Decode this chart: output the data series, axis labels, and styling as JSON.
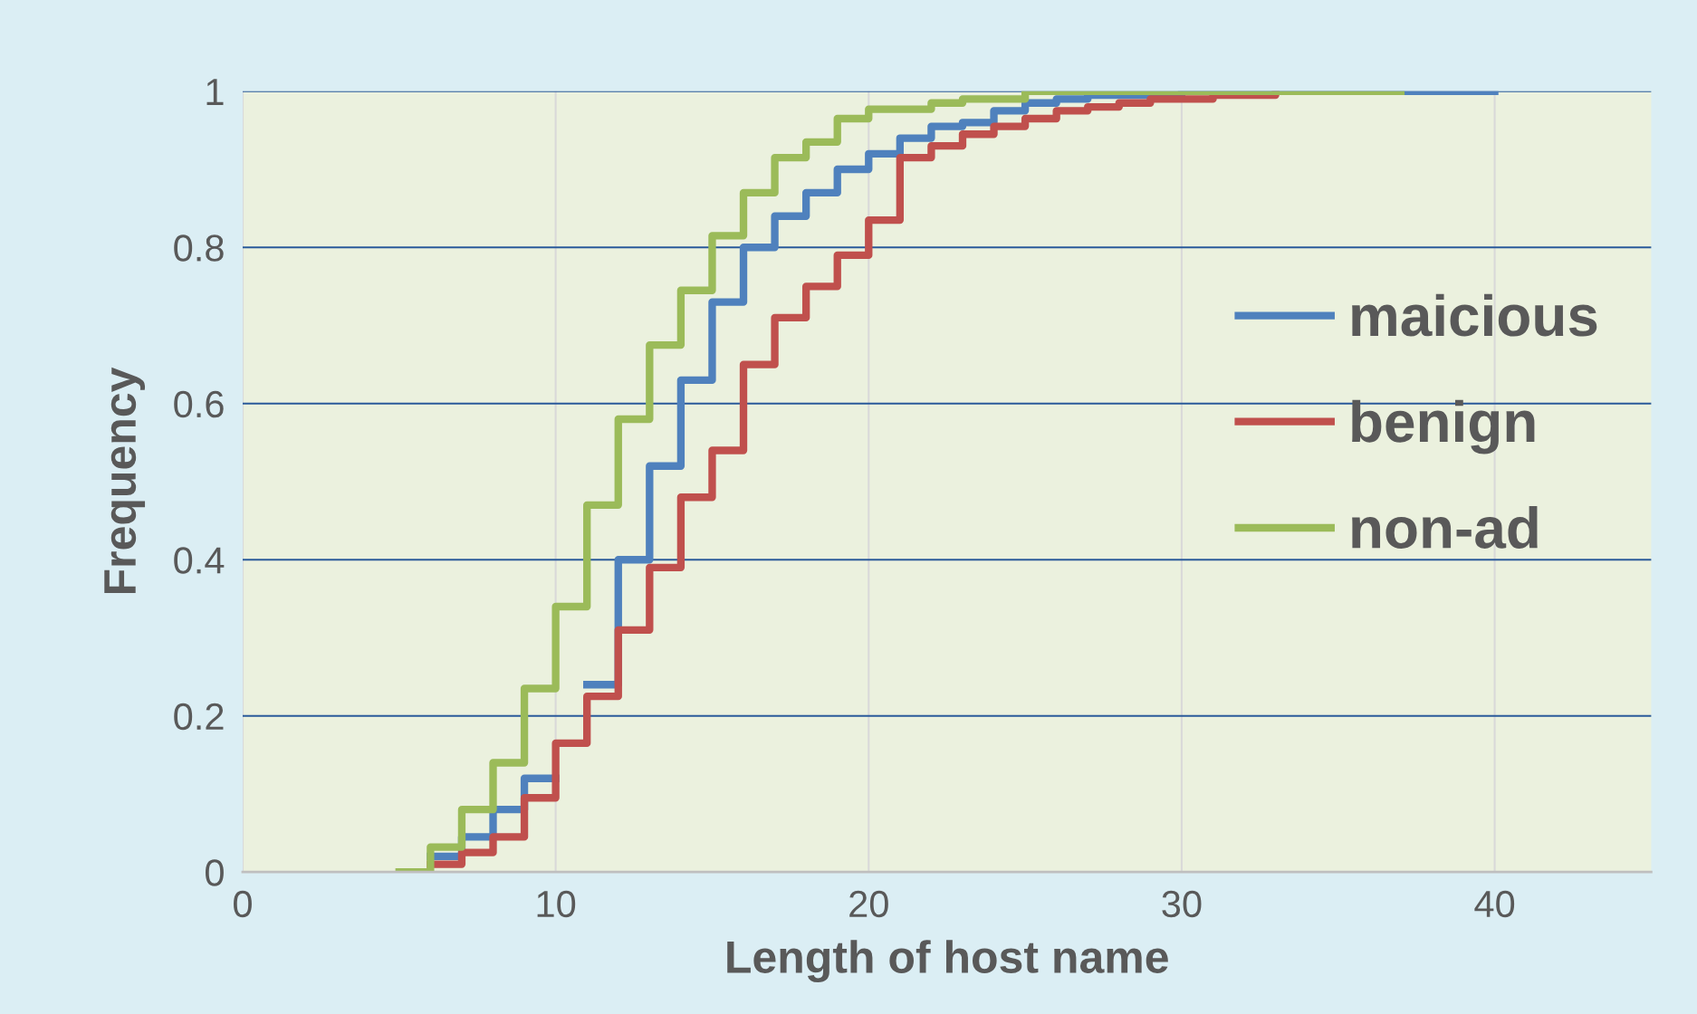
{
  "chart_data": {
    "type": "step",
    "xlabel": "Length of host name",
    "ylabel": "Frequency",
    "xlim": [
      0,
      45
    ],
    "xticks": [
      0,
      10,
      20,
      30,
      40
    ],
    "ylim": [
      0,
      1
    ],
    "yticks": [
      0,
      0.2,
      0.4,
      0.6,
      0.8,
      1
    ],
    "grid": true,
    "legend": "right",
    "series": [
      {
        "name": "maicious",
        "color": "#4f81bd",
        "x": [
          6,
          7,
          8,
          9,
          10,
          11,
          12,
          13,
          14,
          15,
          16,
          17,
          18,
          19,
          20,
          21,
          22,
          23,
          24,
          25,
          26,
          27,
          30,
          40
        ],
        "values": [
          0.02,
          0.045,
          0.08,
          0.12,
          null,
          0.24,
          0.4,
          0.52,
          0.63,
          0.73,
          0.8,
          0.84,
          0.87,
          0.9,
          0.92,
          0.94,
          0.955,
          0.96,
          0.975,
          0.985,
          0.99,
          0.995,
          1,
          1
        ]
      },
      {
        "name": "benign",
        "color": "#c0504d",
        "x": [
          6,
          7,
          8,
          9,
          10,
          11,
          12,
          13,
          14,
          15,
          16,
          17,
          18,
          19,
          20,
          21,
          22,
          23,
          24,
          25,
          26,
          27,
          28,
          29,
          31,
          33
        ],
        "values": [
          0.01,
          0.025,
          0.045,
          0.095,
          0.165,
          0.225,
          0.31,
          0.39,
          0.48,
          0.54,
          0.65,
          0.71,
          0.75,
          0.79,
          0.835,
          0.915,
          0.93,
          0.945,
          0.955,
          0.965,
          0.975,
          0.98,
          0.985,
          0.99,
          0.995,
          1
        ]
      },
      {
        "name": "non-ad",
        "color": "#9bbb59",
        "x": [
          5,
          6,
          7,
          8,
          9,
          10,
          11,
          12,
          13,
          14,
          15,
          16,
          17,
          18,
          19,
          20,
          22,
          23,
          25,
          37
        ],
        "values": [
          0,
          0.032,
          0.08,
          0.14,
          0.235,
          0.34,
          0.47,
          0.58,
          0.675,
          0.745,
          0.815,
          0.87,
          0.915,
          0.935,
          0.965,
          0.977,
          0.985,
          0.99,
          1,
          1
        ]
      }
    ]
  }
}
